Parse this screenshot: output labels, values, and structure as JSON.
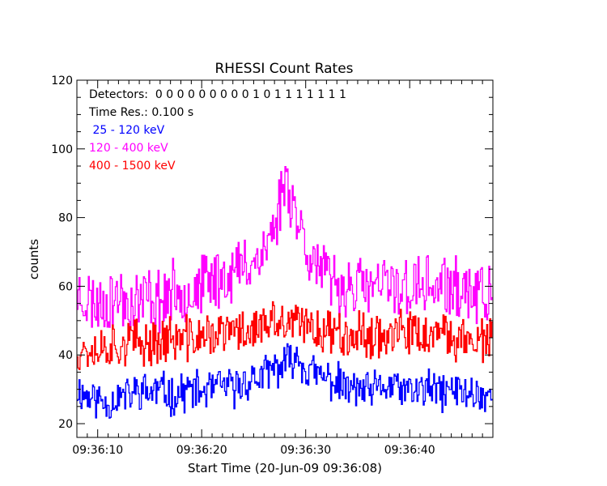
{
  "chart_data": {
    "type": "line",
    "step": true,
    "title": "RHESSI Count Rates",
    "xlabel": "Start Time (20-Jun-09 09:36:08)",
    "ylabel": "counts",
    "xlim": [
      0,
      40
    ],
    "ylim": [
      16,
      120
    ],
    "xticks": [
      {
        "t": 2,
        "label": "09:36:10"
      },
      {
        "t": 12,
        "label": "09:36:20"
      },
      {
        "t": 22,
        "label": "09:36:30"
      },
      {
        "t": 32,
        "label": "09:36:40"
      }
    ],
    "yticks": [
      20,
      40,
      60,
      80,
      100,
      120
    ],
    "grid": false,
    "legend_position": "top-left",
    "annotations": {
      "detectors": "Detectors:  0 0 0 0 0 0 0 0 0 1 0 1 1 1 1 1 1 1",
      "time_res": "Time Res.: 0.100 s"
    },
    "x_step_seconds": 0.1,
    "series": [
      {
        "name": " 25 - 120 keV",
        "color": "#0000ff",
        "anchors": [
          [
            0,
            30
          ],
          [
            1,
            28
          ],
          [
            2,
            27
          ],
          [
            3,
            26
          ],
          [
            4,
            28
          ],
          [
            5,
            28
          ],
          [
            6,
            30
          ],
          [
            7,
            29
          ],
          [
            8,
            30
          ],
          [
            9,
            28
          ],
          [
            10,
            29
          ],
          [
            11,
            30
          ],
          [
            12,
            29
          ],
          [
            13,
            30
          ],
          [
            14,
            31
          ],
          [
            15,
            30
          ],
          [
            16,
            32
          ],
          [
            17,
            33
          ],
          [
            18,
            34
          ],
          [
            19,
            36
          ],
          [
            20,
            37
          ],
          [
            21,
            40
          ],
          [
            22,
            36
          ],
          [
            23,
            34
          ],
          [
            24,
            33
          ],
          [
            25,
            32
          ],
          [
            26,
            30
          ],
          [
            27,
            30
          ],
          [
            28,
            29
          ],
          [
            29,
            30
          ],
          [
            30,
            31
          ],
          [
            31,
            30
          ],
          [
            32,
            29
          ],
          [
            33,
            30
          ],
          [
            34,
            30
          ],
          [
            35,
            29
          ],
          [
            36,
            30
          ],
          [
            37,
            29
          ],
          [
            38,
            29
          ],
          [
            39,
            28
          ],
          [
            40,
            28
          ]
        ],
        "noise": 5,
        "seed": 11
      },
      {
        "name": "120 - 400 keV",
        "color": "#ff00ff",
        "anchors": [
          [
            0,
            58
          ],
          [
            1,
            56
          ],
          [
            2,
            55
          ],
          [
            3,
            56
          ],
          [
            4,
            57
          ],
          [
            5,
            55
          ],
          [
            6,
            56
          ],
          [
            7,
            57
          ],
          [
            8,
            56
          ],
          [
            9,
            58
          ],
          [
            10,
            59
          ],
          [
            11,
            58
          ],
          [
            12,
            60
          ],
          [
            13,
            62
          ],
          [
            14,
            63
          ],
          [
            15,
            64
          ],
          [
            16,
            66
          ],
          [
            17,
            68
          ],
          [
            18,
            70
          ],
          [
            19,
            78
          ],
          [
            20,
            92
          ],
          [
            21,
            82
          ],
          [
            22,
            72
          ],
          [
            23,
            66
          ],
          [
            24,
            62
          ],
          [
            25,
            60
          ],
          [
            26,
            60
          ],
          [
            27,
            60
          ],
          [
            28,
            59
          ],
          [
            29,
            60
          ],
          [
            30,
            60
          ],
          [
            31,
            60
          ],
          [
            32,
            59
          ],
          [
            33,
            60
          ],
          [
            34,
            60
          ],
          [
            35,
            60
          ],
          [
            36,
            59
          ],
          [
            37,
            59
          ],
          [
            38,
            58
          ],
          [
            39,
            57
          ],
          [
            40,
            57
          ]
        ],
        "noise": 8,
        "seed": 23
      },
      {
        "name": "400 - 1500 keV",
        "color": "#ff0000",
        "anchors": [
          [
            0,
            42
          ],
          [
            1,
            42
          ],
          [
            2,
            42
          ],
          [
            3,
            43
          ],
          [
            4,
            43
          ],
          [
            5,
            44
          ],
          [
            6,
            43
          ],
          [
            7,
            44
          ],
          [
            8,
            44
          ],
          [
            9,
            45
          ],
          [
            10,
            44
          ],
          [
            11,
            45
          ],
          [
            12,
            45
          ],
          [
            13,
            46
          ],
          [
            14,
            46
          ],
          [
            15,
            47
          ],
          [
            16,
            47
          ],
          [
            17,
            48
          ],
          [
            18,
            48
          ],
          [
            19,
            49
          ],
          [
            20,
            49
          ],
          [
            21,
            49
          ],
          [
            22,
            48
          ],
          [
            23,
            48
          ],
          [
            24,
            47
          ],
          [
            25,
            47
          ],
          [
            26,
            47
          ],
          [
            27,
            46
          ],
          [
            28,
            46
          ],
          [
            29,
            46
          ],
          [
            30,
            46
          ],
          [
            31,
            46
          ],
          [
            32,
            46
          ],
          [
            33,
            46
          ],
          [
            34,
            45
          ],
          [
            35,
            45
          ],
          [
            36,
            45
          ],
          [
            37,
            45
          ],
          [
            38,
            45
          ],
          [
            39,
            44
          ],
          [
            40,
            44
          ]
        ],
        "noise": 6,
        "seed": 37
      }
    ]
  }
}
